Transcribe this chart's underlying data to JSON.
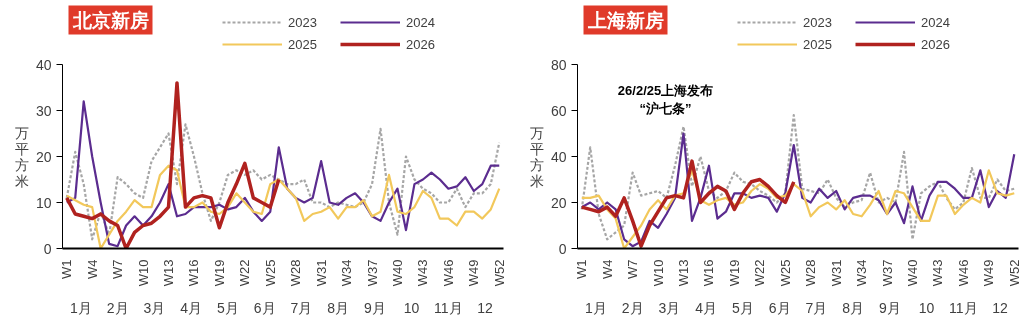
{
  "chart_data": [
    {
      "type": "line",
      "title": "北京新房",
      "ylabel": "万平方米",
      "categories": [
        "W1",
        null,
        null,
        "W4",
        null,
        null,
        "W7",
        null,
        null,
        "W10",
        null,
        null,
        "W13",
        null,
        null,
        "W16",
        null,
        null,
        "W19",
        null,
        null,
        "W22",
        null,
        null,
        "W25",
        null,
        null,
        "W28",
        null,
        null,
        "W31",
        null,
        null,
        "W34",
        null,
        null,
        "W37",
        null,
        null,
        "W40",
        null,
        null,
        "W43",
        null,
        null,
        "W46",
        null,
        null,
        "W49",
        null,
        null,
        "W52"
      ],
      "annotations": [
        "1月",
        "2月",
        "3月",
        "4月",
        "5月",
        "6月",
        "7月",
        "8月",
        "9月",
        "10",
        "11月",
        "12"
      ],
      "ylim": [
        0,
        40
      ],
      "yticks": [
        0,
        10,
        20,
        30,
        40
      ],
      "grid": false,
      "legend": "top",
      "series": [
        {
          "name": "2023",
          "color": "#a6a6a6",
          "line_style": "dashed",
          "values": [
            11,
            21,
            14,
            2,
            8,
            3,
            15.5,
            14,
            12,
            11,
            19,
            22,
            25,
            14,
            27,
            20,
            12,
            6,
            10,
            16,
            17,
            16,
            17,
            15,
            16,
            15,
            14,
            14,
            15,
            10,
            10,
            9,
            10,
            9.5,
            9,
            10,
            14,
            26,
            10,
            3,
            20,
            15,
            13,
            12,
            10,
            10,
            13,
            9,
            12,
            12,
            14,
            23
          ]
        },
        {
          "name": "2024",
          "color": "#5b2c8f",
          "line_style": "solid",
          "values": [
            10,
            11,
            32,
            20,
            10,
            1,
            0.5,
            5,
            7,
            5,
            7,
            10,
            14,
            7,
            7.5,
            9,
            9,
            9,
            9.5,
            8.5,
            9,
            11,
            8,
            6,
            8,
            22,
            13,
            11,
            10,
            11,
            19,
            10,
            9.5,
            11,
            12,
            10,
            7,
            6,
            10,
            13,
            4,
            14,
            15,
            16.5,
            15,
            13,
            13.5,
            15.5,
            12.5,
            14,
            18,
            18
          ]
        },
        {
          "name": "2025",
          "color": "#f2c85b",
          "line_style": "solid",
          "values": [
            11.5,
            10.5,
            9.5,
            9,
            0,
            3,
            6,
            8,
            10.5,
            9,
            9,
            16,
            18,
            17,
            9,
            9,
            10,
            8,
            7.5,
            9,
            12,
            10,
            8,
            7.5,
            14,
            15,
            13,
            11,
            6,
            7.5,
            8,
            9,
            6.5,
            9,
            9,
            10.5,
            7,
            8,
            16,
            8,
            7.5,
            9,
            12.5,
            11,
            6.5,
            6.5,
            5,
            8,
            8,
            6.5,
            8.5,
            13
          ]
        },
        {
          "name": "2026",
          "color": "#b0221f",
          "line_style": "solid",
          "values": [
            11,
            7.5,
            7,
            6.5,
            7.5,
            6,
            5,
            0,
            3.5,
            5,
            5.5,
            7,
            9,
            36,
            9,
            11,
            11.5,
            11,
            4.5,
            10,
            14,
            18.5,
            11,
            10,
            9,
            15,
            null,
            null,
            null,
            null,
            null,
            null,
            null,
            null,
            null,
            null,
            null,
            null,
            null,
            null,
            null,
            null,
            null,
            null,
            null,
            null,
            null,
            null,
            null,
            null,
            null,
            null
          ]
        }
      ]
    },
    {
      "type": "line",
      "title": "上海新房",
      "ylabel": "万平方米",
      "categories": [
        "W1",
        null,
        null,
        "W4",
        null,
        null,
        "W7",
        null,
        null,
        "W10",
        null,
        null,
        "W13",
        null,
        null,
        "W16",
        null,
        null,
        "W19",
        null,
        null,
        "W22",
        null,
        null,
        "W25",
        null,
        null,
        "W28",
        null,
        null,
        "W31",
        null,
        null,
        "W34",
        null,
        null,
        "W37",
        null,
        null,
        "W40",
        null,
        null,
        "W43",
        null,
        null,
        "W46",
        null,
        null,
        "W49",
        null,
        null,
        "W52"
      ],
      "annotations": [
        "1月",
        "2月",
        "3月",
        "4月",
        "5月",
        "6月",
        "7月",
        "8月",
        "9月",
        "10",
        "11月",
        "12",
        {
          "text": "26/2/25上海发布\n“沪七条”"
        }
      ],
      "ylim": [
        0,
        80
      ],
      "yticks": [
        0,
        20,
        40,
        60,
        80
      ],
      "grid": false,
      "legend": "top",
      "series": [
        {
          "name": "2023",
          "color": "#a6a6a6",
          "line_style": "dashed",
          "values": [
            17,
            44,
            15,
            4,
            7,
            10,
            33,
            23,
            24,
            25,
            22,
            36,
            53,
            27,
            40,
            25,
            22,
            25,
            33,
            29,
            28,
            25,
            23,
            20,
            24,
            58,
            26,
            25,
            24,
            30,
            22,
            18,
            20,
            21,
            33,
            20,
            22,
            20,
            42,
            4,
            24,
            27,
            29,
            22,
            17,
            20,
            35,
            22,
            22,
            30,
            25,
            26
          ]
        },
        {
          "name": "2024",
          "color": "#5b2c8f",
          "line_style": "solid",
          "values": [
            18,
            20,
            17,
            20,
            17,
            4,
            1,
            3,
            12,
            9,
            15,
            22,
            50,
            12,
            22,
            36,
            13,
            16,
            24,
            24,
            22,
            23,
            22,
            16,
            24,
            45,
            22,
            20,
            26,
            22,
            25,
            17,
            22,
            23,
            23,
            21,
            15,
            20,
            11,
            27,
            12,
            23,
            29,
            29,
            26,
            22,
            22,
            34,
            18,
            25,
            22,
            41
          ]
        },
        {
          "name": "2025",
          "color": "#f2c85b",
          "line_style": "solid",
          "values": [
            22,
            22,
            23,
            17,
            13,
            0,
            5,
            10,
            17,
            21,
            17,
            23,
            24,
            34,
            21,
            19,
            21,
            22,
            19,
            20,
            25,
            28,
            26,
            22,
            23,
            28,
            25,
            14,
            18,
            20,
            17,
            21,
            15,
            14,
            19,
            25,
            15,
            25,
            24,
            18,
            12,
            12,
            23,
            23,
            15,
            19,
            22,
            20,
            34,
            24,
            23,
            24
          ]
        },
        {
          "name": "2026",
          "color": "#b0221f",
          "line_style": "solid",
          "values": [
            18,
            17,
            16,
            18,
            14,
            22,
            12,
            1,
            10,
            16,
            22,
            23,
            22,
            38,
            20,
            24,
            27,
            25,
            17,
            24,
            29,
            30,
            27,
            23,
            20,
            29,
            null,
            null,
            null,
            null,
            null,
            null,
            null,
            null,
            null,
            null,
            null,
            null,
            null,
            null,
            null,
            null,
            null,
            null,
            null,
            null,
            null,
            null,
            null,
            null,
            null,
            null
          ]
        }
      ]
    }
  ]
}
